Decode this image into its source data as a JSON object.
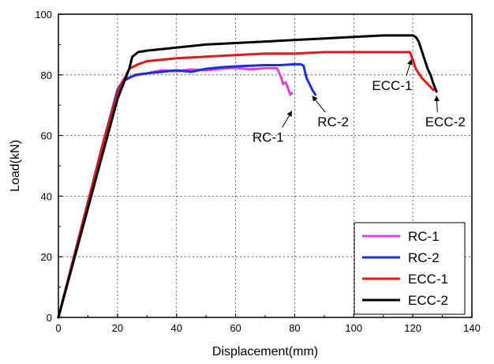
{
  "chart_data": {
    "type": "line",
    "title": "",
    "xlabel": "Displacement(mm)",
    "ylabel": "Load(kN)",
    "xlim": [
      0,
      140
    ],
    "ylim": [
      0,
      100
    ],
    "xticks": [
      0,
      20,
      40,
      60,
      80,
      100,
      120,
      140
    ],
    "yticks": [
      0,
      20,
      40,
      60,
      80,
      100
    ],
    "grid": "dashed",
    "legend_position": "bottom-right",
    "series": [
      {
        "name": "RC-1",
        "color": "#e040e0",
        "x": [
          0,
          5,
          10,
          15,
          20,
          22,
          26,
          30,
          35,
          40,
          45,
          50,
          55,
          60,
          65,
          70,
          74,
          75.5,
          76,
          77,
          78.5,
          79
        ],
        "y": [
          0,
          19,
          38,
          57,
          75,
          78.5,
          79.8,
          80.5,
          81.5,
          81.2,
          81.8,
          81.5,
          82,
          82.3,
          81.8,
          82.2,
          82.2,
          79,
          77,
          77.5,
          73.5,
          74
        ]
      },
      {
        "name": "RC-2",
        "color": "#1a2ee0",
        "x": [
          0,
          5,
          10,
          15,
          20,
          22,
          26,
          30,
          35,
          40,
          45,
          50,
          55,
          60,
          65,
          70,
          75,
          80,
          82,
          83,
          84,
          85,
          86,
          87
        ],
        "y": [
          0,
          19,
          38,
          57,
          75,
          78,
          80,
          80.5,
          81,
          81.5,
          81,
          82,
          82.5,
          82.8,
          83,
          83.2,
          83.2,
          83.5,
          83.5,
          83,
          79,
          77,
          75,
          73.5
        ]
      },
      {
        "name": "ECC-1",
        "color": "#e01a1a",
        "x": [
          0,
          5,
          10,
          15,
          20,
          22,
          24,
          27,
          30,
          35,
          40,
          50,
          60,
          70,
          80,
          90,
          100,
          110,
          115,
          119,
          120,
          121,
          123,
          125,
          127
        ],
        "y": [
          0,
          19,
          38,
          57,
          74,
          78,
          82,
          83.5,
          84.5,
          85,
          85.5,
          86,
          86.5,
          87,
          87,
          87.5,
          87.5,
          87.5,
          87.5,
          87.5,
          85,
          82,
          79,
          77,
          75
        ]
      },
      {
        "name": "ECC-2",
        "color": "#000000",
        "x": [
          0,
          5,
          10,
          15,
          20,
          22,
          24,
          25,
          27,
          30,
          35,
          40,
          50,
          60,
          70,
          80,
          90,
          100,
          110,
          115,
          120,
          121,
          122,
          123,
          124,
          125,
          126,
          127,
          128
        ],
        "y": [
          0,
          18,
          36,
          54,
          72,
          77,
          82,
          86,
          87.5,
          88,
          88.5,
          89,
          90,
          90.5,
          91,
          91.5,
          92,
          92.5,
          93,
          93,
          93,
          92.5,
          91,
          88,
          85,
          82,
          80,
          77,
          74.5
        ]
      }
    ],
    "annotations": [
      {
        "text": "RC-1",
        "x": 71,
        "y": 58,
        "arrow_to": [
          79,
          68
        ]
      },
      {
        "text": "RC-2",
        "x": 93,
        "y": 63,
        "arrow_to": [
          86,
          73
        ]
      },
      {
        "text": "ECC-1",
        "x": 113,
        "y": 75,
        "arrow_to": [
          119.5,
          85
        ]
      },
      {
        "text": "ECC-2",
        "x": 131,
        "y": 63,
        "arrow_to": [
          128,
          73
        ]
      }
    ]
  }
}
